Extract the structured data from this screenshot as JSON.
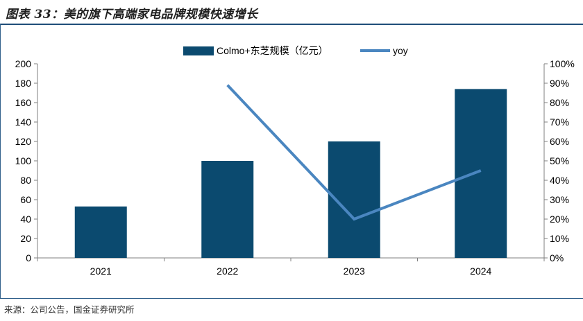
{
  "figure": {
    "title": "图表 33：美的旗下高端家电品牌规模快速增长",
    "source": "来源：公司公告，国金证券研究所"
  },
  "chart_data": {
    "type": "bar",
    "categories": [
      "2021",
      "2022",
      "2023",
      "2024"
    ],
    "series": [
      {
        "name": "Colmo+东芝规模（亿元）",
        "type": "bar",
        "axis": "left",
        "color": "#0b4a6f",
        "values": [
          53,
          100,
          120,
          174
        ]
      },
      {
        "name": "yoy",
        "type": "line",
        "axis": "right",
        "color": "#4a86c0",
        "values": [
          null,
          0.89,
          0.2,
          0.45
        ]
      }
    ],
    "y_left": {
      "min": 0,
      "max": 200,
      "step": 20,
      "ticks": [
        "0",
        "20",
        "40",
        "60",
        "80",
        "100",
        "120",
        "140",
        "160",
        "180",
        "200"
      ]
    },
    "y_right": {
      "min": 0,
      "max": 1.0,
      "step": 0.1,
      "ticks": [
        "0%",
        "10%",
        "20%",
        "30%",
        "40%",
        "50%",
        "60%",
        "70%",
        "80%",
        "90%",
        "100%"
      ]
    },
    "legend": {
      "position": "top-center",
      "entries": [
        "Colmo+东芝规模（亿元）",
        "yoy"
      ]
    },
    "grid": false
  }
}
